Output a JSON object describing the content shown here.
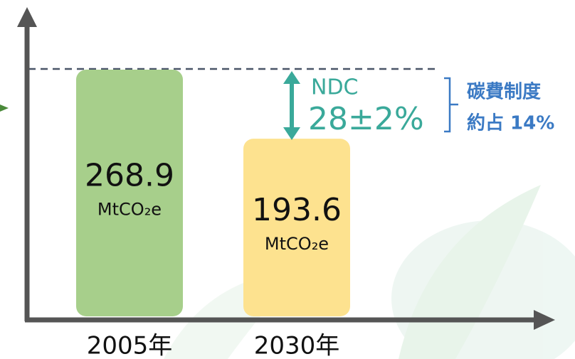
{
  "chart_data": {
    "type": "bar",
    "categories": [
      "2005年",
      "2030年"
    ],
    "values": [
      268.9,
      193.6
    ],
    "unit": "MtCO₂e",
    "colors": [
      "#a7cf8b",
      "#fde28f"
    ],
    "annotations": {
      "ndc_label": "NDC",
      "ndc_range": "28±2%",
      "carbon_fee": "碳費制度",
      "carbon_share": "約占 14%"
    }
  }
}
